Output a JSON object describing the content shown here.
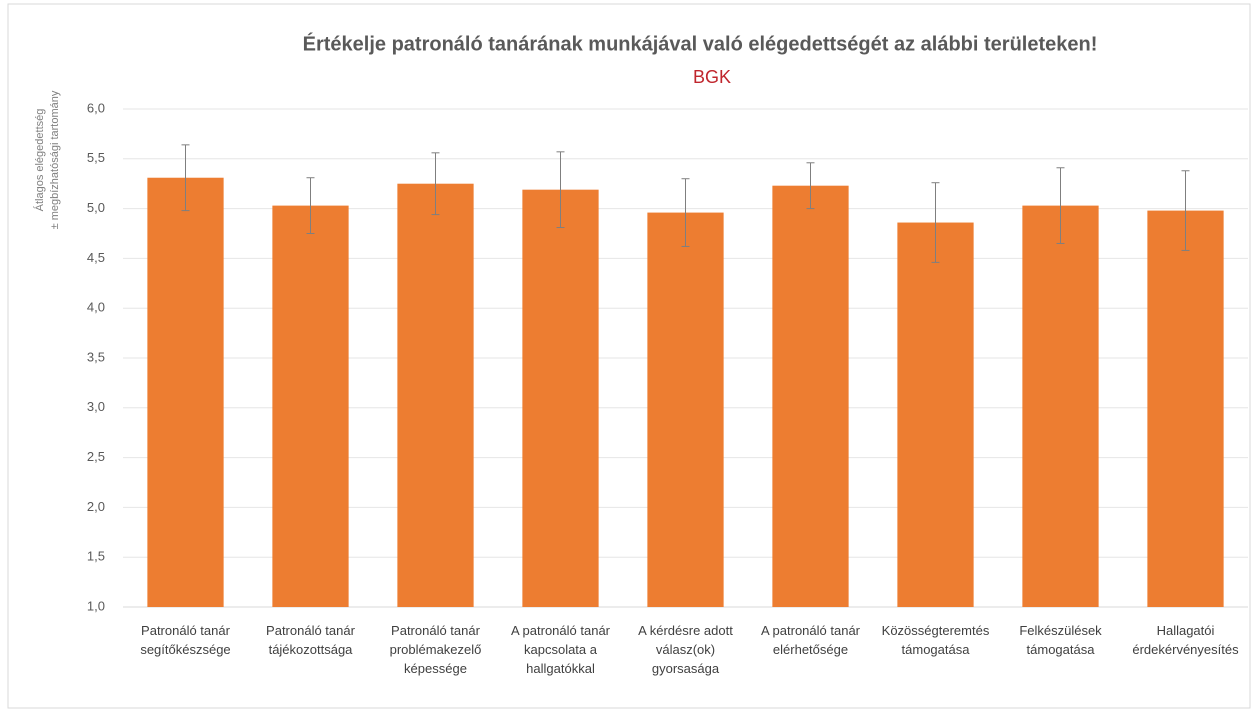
{
  "chart_data": {
    "type": "bar",
    "title": "Értékelje patronáló tanárának munkájával való elégedettségét az alábbi területeken!",
    "subtitle": "BGK",
    "ylabel": [
      "Átlagos elégedettség",
      "± megbízhatósági tartomány"
    ],
    "categories": [
      "Patronáló tanár segítőkészsége",
      "Patronáló tanár tájékozottsága",
      "Patronáló tanár problémakezelő képessége",
      "A patronáló tanár kapcsolata a hallgatókkal",
      "A kérdésre adott válasz(ok) gyorsasága",
      "A patronáló tanár elérhetősége",
      "Közösségteremtés támogatása",
      "Felkészülések támogatása",
      "Hallagatói érdekérvényesítés"
    ],
    "values": [
      5.31,
      5.03,
      5.25,
      5.19,
      4.96,
      5.23,
      4.86,
      5.03,
      4.98
    ],
    "errors": [
      0.33,
      0.28,
      0.31,
      0.38,
      0.34,
      0.23,
      0.4,
      0.38,
      0.4
    ],
    "color": "#ed7d31",
    "ylim": [
      1,
      6
    ],
    "yticks": [
      {
        "value": 1,
        "label": "1,0"
      },
      {
        "value": 1.5,
        "label": "1,5"
      },
      {
        "value": 2,
        "label": "2,0"
      },
      {
        "value": 2.5,
        "label": "2,5"
      },
      {
        "value": 3,
        "label": "3,0"
      },
      {
        "value": 3.5,
        "label": "3,5"
      },
      {
        "value": 4,
        "label": "4,0"
      },
      {
        "value": 4.5,
        "label": "4,5"
      },
      {
        "value": 5,
        "label": "5,0"
      },
      {
        "value": 5.5,
        "label": "5,5"
      },
      {
        "value": 6,
        "label": "6,0"
      }
    ],
    "grid": true
  }
}
